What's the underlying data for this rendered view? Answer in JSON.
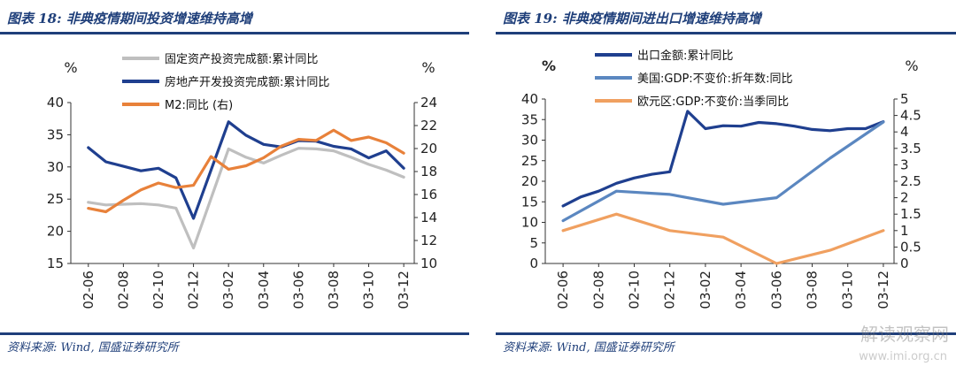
{
  "left": {
    "title": "图表 18:  非典疫情期间投资增速维持高增",
    "source": "资料来源:  Wind,  国盛证券研究所",
    "unit_left": "%",
    "unit_right": "%"
  },
  "right": {
    "title": "图表 19:  非典疫情期间进出口增速维持高增",
    "source": "资料来源:  Wind,  国盛证券研究所",
    "unit_left": "%",
    "unit_right": "%"
  },
  "watermark": {
    "line1": "解读观察网",
    "line2": "www.imi.org.cn"
  },
  "chart_data": [
    {
      "type": "line",
      "x_ticks": [
        "02-06",
        "02-08",
        "02-10",
        "02-12",
        "03-02",
        "03-04",
        "03-06",
        "03-08",
        "03-10",
        "03-12"
      ],
      "x": [
        "2002-06",
        "2002-07",
        "2002-08",
        "2002-09",
        "2002-10",
        "2002-11",
        "2002-12",
        "2003-01",
        "2003-02",
        "2003-03",
        "2003-04",
        "2003-05",
        "2003-06",
        "2003-07",
        "2003-08",
        "2003-09",
        "2003-10",
        "2003-11",
        "2003-12"
      ],
      "y_left": {
        "min": 15,
        "max": 40,
        "ticks": [
          15,
          20,
          25,
          30,
          35,
          40
        ]
      },
      "y_right": {
        "min": 10,
        "max": 24,
        "ticks": [
          10,
          12,
          14,
          16,
          18,
          20,
          22,
          24
        ]
      },
      "legend_position": "top-center",
      "grid": false,
      "series": [
        {
          "name": "固定资产投资完成额:累计同比",
          "axis": "left",
          "color": "#bfbfbf",
          "values": [
            24.5,
            24.1,
            24.2,
            24.3,
            24.1,
            23.6,
            17.4,
            null,
            32.8,
            31.5,
            30.6,
            31.8,
            32.9,
            32.8,
            32.5,
            31.5,
            30.4,
            29.5,
            28.4
          ]
        },
        {
          "name": "房地产开发投资完成额:累计同比",
          "axis": "left",
          "color": "#1f3f8f",
          "values": [
            33.0,
            30.8,
            30.1,
            29.4,
            29.8,
            28.3,
            22.0,
            null,
            37.0,
            34.9,
            33.5,
            33.1,
            34.1,
            34.0,
            33.2,
            32.8,
            31.4,
            32.5,
            29.8
          ]
        },
        {
          "name": "M2:同比 (右)",
          "axis": "right",
          "color": "#e8813a",
          "values": [
            14.8,
            14.5,
            15.5,
            16.4,
            17.0,
            16.6,
            16.8,
            19.3,
            18.2,
            18.5,
            19.2,
            20.2,
            20.8,
            20.7,
            21.6,
            20.7,
            21.0,
            20.5,
            19.6
          ]
        }
      ]
    },
    {
      "type": "line",
      "x_ticks": [
        "02-06",
        "02-08",
        "02-10",
        "02-12",
        "03-02",
        "03-04",
        "03-06",
        "03-08",
        "03-10",
        "03-12"
      ],
      "x_dates_main": [
        "2002-06",
        "2002-07",
        "2002-08",
        "2002-09",
        "2002-10",
        "2002-11",
        "2002-12",
        "2003-01",
        "2003-02",
        "2003-03",
        "2003-04",
        "2003-05",
        "2003-06",
        "2003-07",
        "2003-08",
        "2003-09",
        "2003-10",
        "2003-11",
        "2003-12"
      ],
      "x_dates_quarterly": [
        "2002-06",
        "2002-09",
        "2002-12",
        "2003-03",
        "2003-06",
        "2003-09",
        "2003-12"
      ],
      "y_left": {
        "min": 0,
        "max": 40,
        "ticks": [
          0,
          5,
          10,
          15,
          20,
          25,
          30,
          35,
          40
        ]
      },
      "y_right": {
        "min": 0,
        "max": 5,
        "ticks": [
          0,
          0.5,
          1,
          1.5,
          2,
          2.5,
          3,
          3.5,
          4,
          4.5,
          5
        ]
      },
      "legend_position": "top-center",
      "grid": false,
      "series": [
        {
          "name": "出口金额:累计同比",
          "axis": "left",
          "color": "#1f3f8f",
          "values": [
            14.0,
            16.2,
            17.6,
            19.5,
            20.8,
            21.7,
            22.3,
            37.0,
            32.8,
            33.5,
            33.4,
            34.3,
            34.0,
            33.4,
            32.6,
            32.3,
            32.8,
            32.8,
            34.5
          ]
        },
        {
          "name": "美国:GDP:不变价:折年数:同比",
          "axis": "right",
          "color": "#5b87c0",
          "values": [
            1.3,
            2.2,
            2.1,
            1.8,
            2.0,
            3.2,
            4.3
          ]
        },
        {
          "name": "欧元区:GDP:不变价:当季同比",
          "axis": "right",
          "color": "#f0a060",
          "values": [
            1.0,
            1.5,
            1.0,
            0.8,
            0.0,
            0.4,
            1.0
          ]
        }
      ]
    }
  ]
}
